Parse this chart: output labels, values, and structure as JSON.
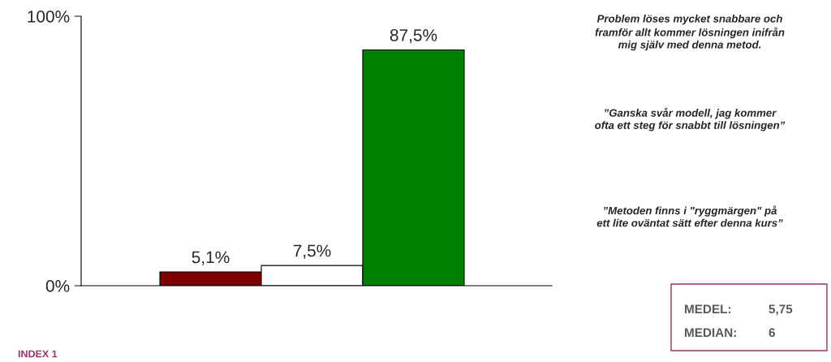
{
  "chart_data": {
    "type": "bar",
    "categories": [
      null,
      null,
      null
    ],
    "values": [
      5.1,
      7.5,
      87.5
    ],
    "colors": [
      "#800000",
      "#ffffff",
      "#008000"
    ],
    "value_labels": [
      "5,1%",
      "7,5%",
      "87,5%"
    ],
    "ylim": [
      0,
      100
    ],
    "yticks": [
      {
        "value": 0,
        "label": "0%"
      },
      {
        "value": 100,
        "label": "100%"
      }
    ],
    "annotations": [
      "Problem löses mycket snabbare och framför allt kommer lösningen inifrån mig själv med denna metod.",
      "”Ganska svår modell, jag kommer ofta ett steg för snabbt till lösningen”",
      "”Metoden finns i \"ryggmärgen\" på ett lite oväntat sätt efter denna kurs”",
      "MEDEL:",
      "5,75",
      "MEDIAN:",
      "6",
      "INDEX 1"
    ]
  }
}
